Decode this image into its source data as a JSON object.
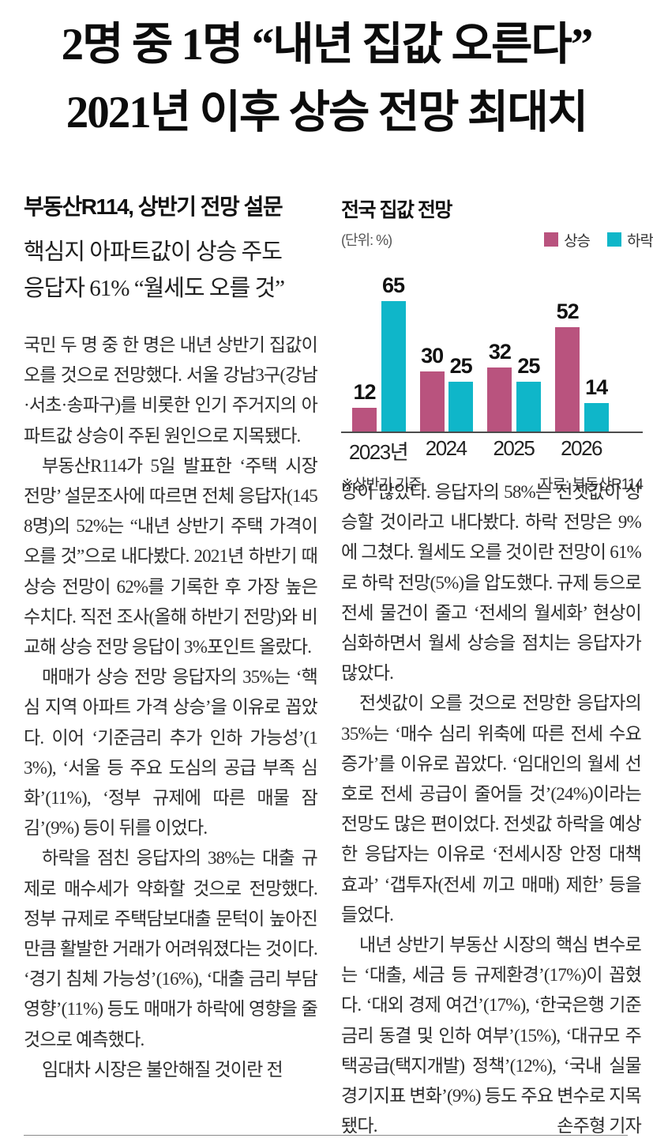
{
  "headline": {
    "line1": "2명 중 1명 “내년 집값 오른다”",
    "line2": "2021년 이후 상승 전망 최대치"
  },
  "left_column": {
    "kicker": "부동산R114, 상반기 전망 설문",
    "subhead1": "핵심지 아파트값이 상승 주도",
    "subhead2": "응답자 61% “월세도 오를 것”",
    "paragraphs": [
      "국민 두 명 중 한 명은 내년 상반기 집값이 오를 것으로 전망했다. 서울 강남3구(강남·서초·송파구)를 비롯한 인기 주거지의 아파트값 상승이 주된 원인으로 지목됐다.",
      "부동산R114가 5일 발표한 ‘주택 시장 전망’ 설문조사에 따르면 전체 응답자(1458명)의 52%는 “내년 상반기 주택 가격이 오를 것”으로 내다봤다. 2021년 하반기 때 상승 전망이 62%를 기록한 후 가장 높은 수치다. 직전 조사(올해 하반기 전망)와 비교해 상승 전망 응답이 3%포인트 올랐다.",
      "매매가 상승 전망 응답자의 35%는 ‘핵심 지역 아파트 가격 상승’을 이유로 꼽았다. 이어 ‘기준금리 추가 인하 가능성’(13%), ‘서울 등 주요 도심의 공급 부족 심화’(11%), ‘정부 규제에 따른 매물 잠김’(9%) 등이 뒤를 이었다.",
      "하락을 점친 응답자의 38%는 대출 규제로 매수세가 약화할 것으로 전망했다. 정부 규제로 주택담보대출 문턱이 높아진 만큼 활발한 거래가 어려워졌다는 것이다. ‘경기 침체 가능성’(16%), ‘대출 금리 부담 영향’(11%) 등도 매매가 하락에 영향을 줄 것으로 예측했다.",
      "임대차 시장은 불안해질 것이란 전"
    ]
  },
  "right_column": {
    "paragraphs": [
      "망이 많았다. 응답자의 58%는 전셋값이 상승할 것이라고 내다봤다. 하락 전망은 9%에 그쳤다. 월세도 오를 것이란 전망이 61%로 하락 전망(5%)을 압도했다. 규제 등으로 전세 물건이 줄고 ‘전세의 월세화’ 현상이 심화하면서 월세 상승을 점치는 응답자가 많았다.",
      "전셋값이 오를 것으로 전망한 응답자의 35%는 ‘매수 심리 위축에 따른 전세 수요 증가’를 이유로 꼽았다. ‘임대인의 월세 선호로 전세 공급이 줄어들 것’(24%)이라는 전망도 많은 편이었다. 전셋값 하락을 예상한 응답자는 이유로 ‘전세시장 안정 대책 효과’ ‘갭투자(전세 끼고 매매) 제한’ 등을 들었다.",
      "내년 상반기 부동산 시장의 핵심 변수로는 ‘대출, 세금 등 규제환경’(17%)이 꼽혔다. ‘대외 경제 여건’(17%), ‘한국은행 기준금리 동결 및 인하 여부’(15%), ‘대규모 주택공급(택지개발) 정책’(12%), ‘국내 실물 경기지표 변화’(9%) 등도 주요 변수로 지목됐다."
    ],
    "byline": "손주형 기자"
  },
  "chart_data": {
    "type": "bar",
    "title": "전국 집값 전망",
    "unit_label": "(단위: %)",
    "categories": [
      "2023년",
      "2024",
      "2025",
      "2026"
    ],
    "series": [
      {
        "name": "상승",
        "color": "#b9537e",
        "values": [
          12,
          30,
          32,
          52
        ]
      },
      {
        "name": "하락",
        "color": "#0fb6c9",
        "values": [
          65,
          25,
          25,
          14
        ]
      }
    ],
    "ylim": [
      0,
      70
    ],
    "grid": false,
    "legend_position": "top-right",
    "footnote_left": "※상반기 기준",
    "footnote_right": "자료: 부동산R114"
  }
}
